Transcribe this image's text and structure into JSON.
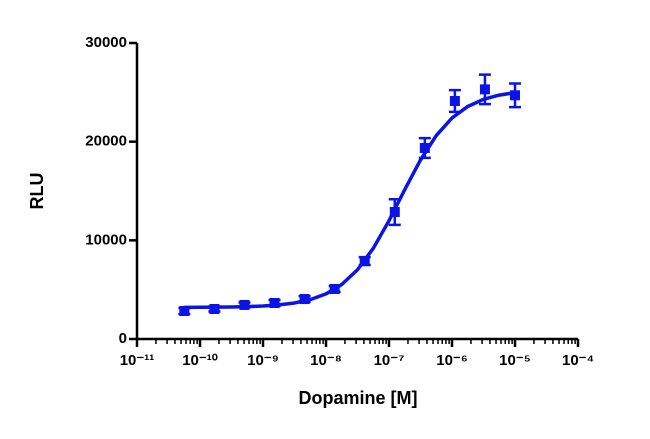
{
  "chart_data": {
    "type": "scatter",
    "x_label": "Dopamine [M]",
    "y_label": "RLU",
    "log_x": true,
    "xlim": [
      1e-11,
      0.0001
    ],
    "xticks": [
      {
        "value": 1e-11,
        "label": "10⁻¹¹"
      },
      {
        "value": 1e-10,
        "label": "10⁻¹⁰"
      },
      {
        "value": 1e-09,
        "label": "10⁻⁹"
      },
      {
        "value": 1e-08,
        "label": "10⁻⁸"
      },
      {
        "value": 1e-07,
        "label": "10⁻⁷"
      },
      {
        "value": 1e-06,
        "label": "10⁻⁶"
      },
      {
        "value": 1e-05,
        "label": "10⁻⁵"
      },
      {
        "value": 0.0001,
        "label": "10⁻⁴"
      }
    ],
    "ylim": [
      0,
      30000
    ],
    "yticks": [
      0,
      10000,
      20000,
      30000
    ],
    "series": [
      {
        "type": "scatter",
        "color": "#0a14e6",
        "x": [
          5.645e-11,
          1.694e-10,
          5.081e-10,
          1.524e-09,
          4.572e-09,
          1.372e-08,
          4.115e-08,
          1.235e-07,
          3.704e-07,
          1.111e-06,
          3.333e-06,
          1e-05
        ],
        "values": [
          2840,
          3040,
          3450,
          3650,
          4050,
          5070,
          7900,
          12870,
          19360,
          24120,
          25300,
          24700
        ],
        "errors": [
          300,
          250,
          250,
          300,
          300,
          300,
          400,
          1300,
          1000,
          1100,
          1500,
          1200
        ]
      },
      {
        "type": "line",
        "color": "#0a14e6",
        "x": [
          5.623e-11,
          1e-10,
          1.778e-10,
          3.162e-10,
          5.623e-10,
          1e-09,
          1.778e-09,
          3.162e-09,
          5.623e-09,
          1e-08,
          1.778e-08,
          3.162e-08,
          5.623e-08,
          1e-07,
          1.778e-07,
          3.162e-07,
          5.623e-07,
          1e-06,
          1.778e-06,
          3.162e-06,
          5.623e-06,
          1e-05
        ],
        "values": [
          3208,
          3215,
          3226,
          3246,
          3282,
          3345,
          3457,
          3652,
          3992,
          4570,
          5524,
          7017,
          9189,
          11991,
          15140,
          18143,
          20615,
          22400,
          23567,
          24290,
          24721,
          24971
        ]
      }
    ]
  }
}
